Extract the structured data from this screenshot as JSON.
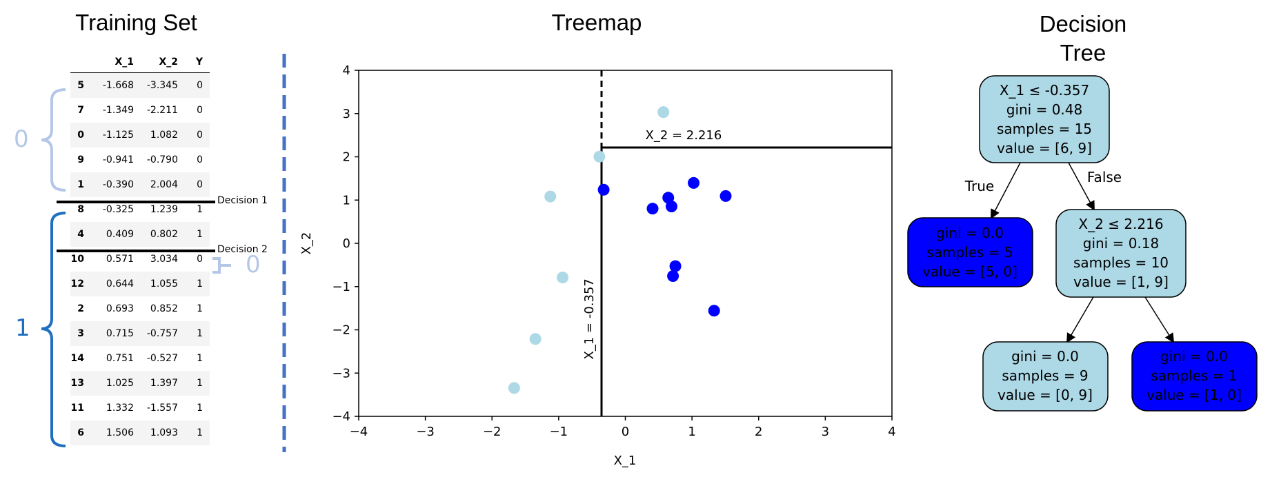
{
  "titles": {
    "training": "Training Set",
    "treemap": "Treemap",
    "tree_line1": "Decision",
    "tree_line2": "Tree"
  },
  "table": {
    "headers": [
      "",
      "X_1",
      "X_2",
      "Y"
    ],
    "rows": [
      {
        "idx": "5",
        "x1": "-1.668",
        "x2": "-3.345",
        "y": "0"
      },
      {
        "idx": "7",
        "x1": "-1.349",
        "x2": "-2.211",
        "y": "0"
      },
      {
        "idx": "0",
        "x1": "-1.125",
        "x2": "1.082",
        "y": "0"
      },
      {
        "idx": "9",
        "x1": "-0.941",
        "x2": "-0.790",
        "y": "0"
      },
      {
        "idx": "1",
        "x1": "-0.390",
        "x2": "2.004",
        "y": "0"
      },
      {
        "idx": "8",
        "x1": "-0.325",
        "x2": "1.239",
        "y": "1"
      },
      {
        "idx": "4",
        "x1": "0.409",
        "x2": "0.802",
        "y": "1"
      },
      {
        "idx": "10",
        "x1": "0.571",
        "x2": "3.034",
        "y": "0"
      },
      {
        "idx": "12",
        "x1": "0.644",
        "x2": "1.055",
        "y": "1"
      },
      {
        "idx": "2",
        "x1": "0.693",
        "x2": "0.852",
        "y": "1"
      },
      {
        "idx": "3",
        "x1": "0.715",
        "x2": "-0.757",
        "y": "1"
      },
      {
        "idx": "14",
        "x1": "0.751",
        "x2": "-0.527",
        "y": "1"
      },
      {
        "idx": "13",
        "x1": "1.025",
        "x2": "1.397",
        "y": "1"
      },
      {
        "idx": "11",
        "x1": "1.332",
        "x2": "-1.557",
        "y": "1"
      },
      {
        "idx": "6",
        "x1": "1.506",
        "x2": "1.093",
        "y": "1"
      }
    ]
  },
  "decisions": {
    "d1": "Decision 1",
    "d2": "Decision 2"
  },
  "groups": {
    "top": "0",
    "bottom": "1",
    "small": "0"
  },
  "colors": {
    "class0": "#add8e6",
    "class1": "#0000ff",
    "bracket_light": "#b4c7e7",
    "bracket_dark": "#1f6fbf",
    "divider": "#4472c4"
  },
  "chart_data": {
    "type": "scatter",
    "xlabel": "X_1",
    "ylabel": "X_2",
    "xlim": [
      -4,
      4
    ],
    "ylim": [
      -4,
      4
    ],
    "xticks": [
      "−4",
      "−3",
      "−2",
      "−1",
      "0",
      "1",
      "2",
      "3",
      "4"
    ],
    "yticks": [
      "−4",
      "−3",
      "−2",
      "−1",
      "0",
      "1",
      "2",
      "3",
      "4"
    ],
    "points": [
      {
        "x": -1.668,
        "y": -3.345,
        "cls": 0
      },
      {
        "x": -1.349,
        "y": -2.211,
        "cls": 0
      },
      {
        "x": -1.125,
        "y": 1.082,
        "cls": 0
      },
      {
        "x": -0.941,
        "y": -0.79,
        "cls": 0
      },
      {
        "x": -0.39,
        "y": 2.004,
        "cls": 0
      },
      {
        "x": -0.325,
        "y": 1.239,
        "cls": 1
      },
      {
        "x": 0.409,
        "y": 0.802,
        "cls": 1
      },
      {
        "x": 0.571,
        "y": 3.034,
        "cls": 0
      },
      {
        "x": 0.644,
        "y": 1.055,
        "cls": 1
      },
      {
        "x": 0.693,
        "y": 0.852,
        "cls": 1
      },
      {
        "x": 0.715,
        "y": -0.757,
        "cls": 1
      },
      {
        "x": 0.751,
        "y": -0.527,
        "cls": 1
      },
      {
        "x": 1.025,
        "y": 1.397,
        "cls": 1
      },
      {
        "x": 1.332,
        "y": -1.557,
        "cls": 1
      },
      {
        "x": 1.506,
        "y": 1.093,
        "cls": 1
      }
    ],
    "split1": {
      "x": -0.357,
      "label": "X_1 = -0.357"
    },
    "split2": {
      "y": 2.216,
      "label": "X_2 = 2.216"
    }
  },
  "tree": {
    "root": {
      "l1": "X_1 ≤ -0.357",
      "l2": "gini = 0.48",
      "l3": "samples = 15",
      "l4": "value = [6, 9]"
    },
    "true_label": "True",
    "false_label": "False",
    "left_leaf": {
      "l1": "gini = 0.0",
      "l2": "samples = 5",
      "l3": "value = [5, 0]"
    },
    "mid": {
      "l1": "X_2 ≤ 2.216",
      "l2": "gini = 0.18",
      "l3": "samples = 10",
      "l4": "value = [1, 9]"
    },
    "leaf_a": {
      "l1": "gini = 0.0",
      "l2": "samples = 9",
      "l3": "value = [0, 9]"
    },
    "leaf_b": {
      "l1": "gini = 0.0",
      "l2": "samples = 1",
      "l3": "value = [1, 0]"
    }
  }
}
